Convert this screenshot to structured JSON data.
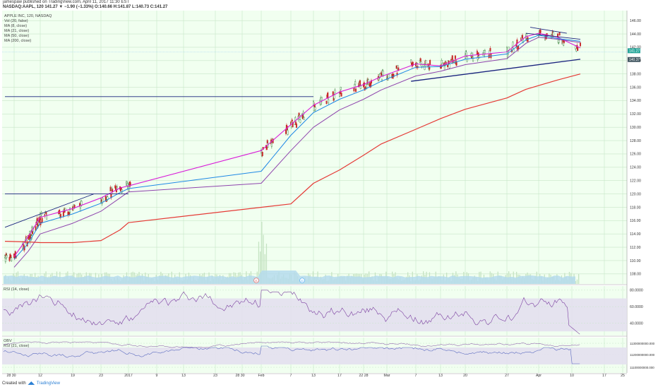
{
  "header": {
    "line1": "jamespaw published on TradingView.com, April 11, 2017 11:30 EST",
    "line2": "NASDAQ:AAPL, 120  141.27 ▼ −1.90 (−1.33%)  O:140.66 H:141.87 L:140.73 C:141.27"
  },
  "indicators": [
    "APPLE INC, 120, NASDAQ",
    "Vol (20, false)",
    "MA (8, close)",
    "MA (21, close)",
    "MA (50, close)",
    "MA (200, close)"
  ],
  "footer": {
    "created_with": "Created with",
    "brand": "TradingView"
  },
  "colors": {
    "background": "#f1fff0",
    "grid": "#c8e6c8",
    "candle_up": "#2e7d32",
    "candle_down": "#c62828",
    "ma8": "#d81bd8",
    "ma21": "#1e88e5",
    "ma50": "#8e44ad",
    "ma200": "#e53935",
    "trendline": "#1a237e",
    "volume": "#b3d9ee",
    "rsi": "#7b3fa0"
  },
  "chart_data": [
    {
      "type": "line",
      "subtype": "candlestick",
      "series": [
        {
          "name": "MA (8, close)",
          "x": [
            "2016-12-30",
            "2017-01-04",
            "2017-01-12",
            "2017-01-19",
            "2017-01-23",
            "2017-01-27",
            "2017-01-31",
            "2017-02-01",
            "2017-02-07",
            "2017-02-13",
            "2017-02-17",
            "2017-02-22",
            "2017-02-28",
            "2017-03-07",
            "2017-03-13",
            "2017-03-20",
            "2017-03-27",
            "2017-03-31",
            "2017-04-03",
            "2017-04-06",
            "2017-04-11"
          ],
          "values": [
            110.6,
            113.6,
            116.5,
            117.8,
            119.4,
            120.9,
            121.2,
            126.5,
            130.4,
            133.3,
            135.3,
            136.4,
            137.6,
            139.5,
            139.2,
            140.7,
            141.3,
            143.6,
            144.1,
            143.5,
            141.9
          ]
        },
        {
          "name": "MA (21, close)",
          "x": [
            "2016-12-30",
            "2017-01-04",
            "2017-01-12",
            "2017-01-19",
            "2017-01-23",
            "2017-01-27",
            "2017-01-31",
            "2017-02-01",
            "2017-02-07",
            "2017-02-13",
            "2017-02-17",
            "2017-02-22",
            "2017-02-28",
            "2017-03-07",
            "2017-03-13",
            "2017-03-20",
            "2017-03-27",
            "2017-03-31",
            "2017-04-03",
            "2017-04-06",
            "2017-04-11"
          ],
          "values": [
            110.2,
            112.6,
            115.6,
            117.0,
            118.6,
            120.2,
            120.8,
            123.4,
            128.8,
            132.2,
            134.2,
            135.6,
            136.9,
            139.0,
            139.1,
            140.2,
            141.0,
            143.1,
            143.8,
            143.3,
            142.9
          ]
        },
        {
          "name": "MA (50, close)",
          "x": [
            "2016-12-30",
            "2017-01-04",
            "2017-01-12",
            "2017-01-19",
            "2017-01-23",
            "2017-01-27",
            "2017-01-31",
            "2017-02-01",
            "2017-02-07",
            "2017-02-13",
            "2017-02-17",
            "2017-02-22",
            "2017-02-28",
            "2017-03-07",
            "2017-03-13",
            "2017-03-20",
            "2017-03-27",
            "2017-03-31",
            "2017-04-03",
            "2017-04-06",
            "2017-04-11"
          ],
          "values": [
            109.0,
            111.4,
            114.0,
            115.6,
            117.4,
            119.4,
            120.3,
            121.6,
            126.5,
            130.0,
            132.6,
            134.2,
            135.6,
            137.7,
            138.4,
            139.4,
            140.3,
            142.6,
            143.5,
            143.2,
            142.7
          ]
        },
        {
          "name": "MA (200, close)",
          "x": [
            "2016-12-28",
            "2017-01-04",
            "2017-01-12",
            "2017-01-19",
            "2017-01-23",
            "2017-01-27",
            "2017-01-31",
            "2017-02-07",
            "2017-02-13",
            "2017-02-17",
            "2017-02-22",
            "2017-02-28",
            "2017-03-07",
            "2017-03-13",
            "2017-03-20",
            "2017-03-27",
            "2017-03-31",
            "2017-04-06",
            "2017-04-11"
          ],
          "values": [
            112.9,
            112.8,
            112.7,
            112.7,
            113.0,
            114.6,
            115.7,
            118.5,
            121.6,
            123.6,
            125.8,
            127.5,
            129.7,
            131.3,
            132.7,
            134.4,
            135.7,
            137.1,
            138.0
          ]
        }
      ],
      "trendlines": [
        {
          "x": [
            "2016-12-28",
            "2017-01-22"
          ],
          "values": [
            115.0,
            120.0
          ]
        },
        {
          "x": [
            "2016-12-28",
            "2017-01-31"
          ],
          "values": [
            120.0,
            120.0
          ]
        },
        {
          "x": [
            "2016-12-28",
            "2017-02-13"
          ],
          "values": [
            134.6,
            134.6
          ]
        },
        {
          "x": [
            "2017-03-06",
            "2017-04-11"
          ],
          "values": [
            136.9,
            140.2
          ]
        },
        {
          "x": [
            "2017-03-31",
            "2017-04-11"
          ],
          "values": [
            144.1,
            143.2
          ]
        },
        {
          "x": [
            "2017-04-01",
            "2017-04-08"
          ],
          "values": [
            145.0,
            144.1
          ]
        }
      ],
      "price_labels": [
        "141.27",
        "140.37"
      ],
      "y_axis_ticks": [
        "108.00",
        "110.00",
        "112.00",
        "114.00",
        "116.00",
        "118.00",
        "120.00",
        "122.00",
        "124.00",
        "126.00",
        "128.00",
        "130.00",
        "132.00",
        "134.00",
        "136.00",
        "138.00",
        "140.00",
        "142.00",
        "144.00",
        "146.00"
      ],
      "x_axis_ticks": [
        "28 30",
        "12",
        "19",
        "23",
        "2017",
        "9",
        "13",
        "23",
        "28 30",
        "Feb",
        "7",
        "13",
        "17",
        "22 28",
        "Mar",
        "7",
        "13",
        "20",
        "27",
        "Apr",
        "10",
        "17",
        "25"
      ],
      "ylim": [
        106.5,
        147.5
      ],
      "grid": true,
      "legend_position": "top-left"
    },
    {
      "type": "bar",
      "name": "Vol (20, false)",
      "markers": [
        "E",
        "D"
      ]
    },
    {
      "type": "line",
      "name": "RSI (14, close)",
      "y_axis_ticks": [
        "80.0000",
        "60.0000",
        "40.0000"
      ],
      "band": [
        30,
        70
      ],
      "ylim": [
        25,
        85
      ]
    },
    {
      "type": "line",
      "name": "OBV",
      "secondary_name": "RSI (21, close)",
      "y_axis_ticks": [
        "11300000000.000",
        "11200000000.000",
        "11100000000.000"
      ]
    }
  ]
}
